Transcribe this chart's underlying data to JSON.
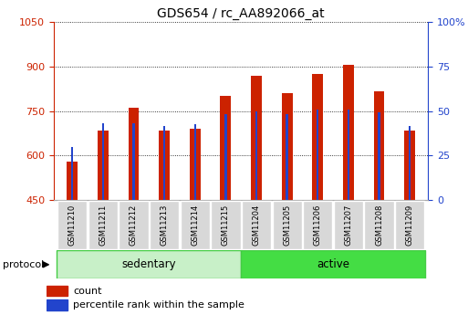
{
  "title": "GDS654 / rc_AA892066_at",
  "samples": [
    "GSM11210",
    "GSM11211",
    "GSM11212",
    "GSM11213",
    "GSM11214",
    "GSM11215",
    "GSM11204",
    "GSM11205",
    "GSM11206",
    "GSM11207",
    "GSM11208",
    "GSM11209"
  ],
  "red_values": [
    580,
    685,
    760,
    685,
    690,
    800,
    870,
    810,
    875,
    905,
    815,
    685
  ],
  "blue_values": [
    630,
    710,
    710,
    700,
    705,
    740,
    750,
    740,
    755,
    755,
    745,
    700
  ],
  "ylim_left": [
    450,
    1050
  ],
  "ylim_right": [
    0,
    100
  ],
  "yticks_left": [
    450,
    600,
    750,
    900,
    1050
  ],
  "yticks_right": [
    0,
    25,
    50,
    75,
    100
  ],
  "red_color": "#cc2200",
  "blue_color": "#2244cc",
  "background_color": "#ffffff",
  "title_fontsize": 10,
  "sed_color": "#c8f0c8",
  "act_color": "#44dd44",
  "border_color": "#44cc44"
}
